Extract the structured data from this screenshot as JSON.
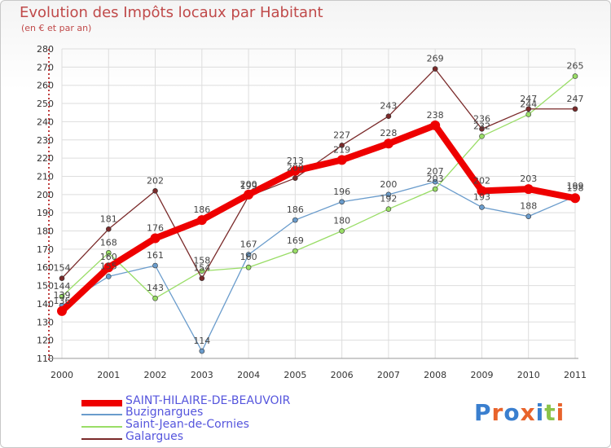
{
  "title": "Evolution des Impôts locaux par Habitant",
  "subtitle": "(en € et par an)",
  "logo_text": "Proxiti",
  "chart_data": {
    "type": "line",
    "title": "Evolution des Impôts locaux par Habitant",
    "subtitle": "(en € et par an)",
    "x": [
      2000,
      2001,
      2002,
      2003,
      2004,
      2005,
      2006,
      2007,
      2008,
      2009,
      2010,
      2011
    ],
    "x_tick_labels": [
      "2000",
      "2001",
      "2002",
      "2003",
      "2004",
      "2005",
      "2006",
      "2007",
      "2008",
      "2009",
      "2010",
      "2011"
    ],
    "ylim": [
      110,
      280
    ],
    "y_ticks": [
      110,
      120,
      130,
      140,
      150,
      160,
      170,
      180,
      190,
      200,
      210,
      220,
      230,
      240,
      250,
      260,
      270,
      280
    ],
    "grid": true,
    "legend_position": "bottom-left",
    "series": [
      {
        "name": "SAINT-HILAIRE-DE-BEAUVOIR",
        "color": "#ee0000",
        "values": [
          136,
          160,
          176,
          186,
          200,
          213,
          219,
          228,
          238,
          202,
          203,
          198
        ]
      },
      {
        "name": "Buzignargues",
        "color": "#6a9ccc",
        "values": [
          139,
          155,
          161,
          114,
          167,
          186,
          196,
          200,
          207,
          193,
          188,
          199
        ]
      },
      {
        "name": "Saint-Jean-de-Cornies",
        "color": "#99dd66",
        "values": [
          144,
          168,
          143,
          158,
          160,
          169,
          180,
          192,
          203,
          232,
          244,
          265
        ]
      },
      {
        "name": "Galargues",
        "color": "#7a2a2a",
        "values": [
          154,
          181,
          202,
          154,
          199,
          209,
          227,
          243,
          269,
          236,
          247,
          247
        ]
      }
    ]
  },
  "colors": {
    "title": "#c04a4a",
    "legend_text": "#5555dd",
    "grid": "#dddddd",
    "axis": "#aa0000"
  }
}
